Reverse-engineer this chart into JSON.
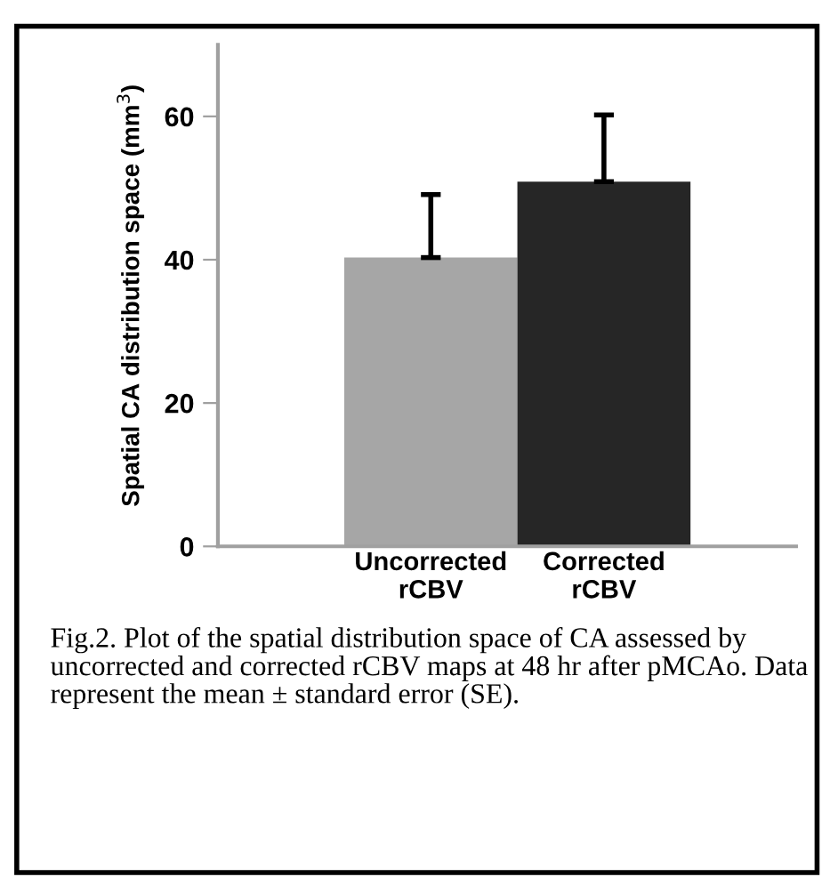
{
  "chart_data": {
    "type": "bar",
    "ylabel": "Spatial CA distribution space (mm$^{3}$)",
    "categories": [
      "Uncorrected\nrCBV",
      "Corrected\nrCBV"
    ],
    "values": [
      40.3,
      50.9
    ],
    "colors": [
      "#a6a6a6",
      "#262626"
    ],
    "errors": [
      [
        40.3,
        49.1
      ],
      [
        50.9,
        60.2
      ]
    ],
    "ylim": [
      0,
      70
    ],
    "yticks": [
      0,
      20,
      40,
      60
    ],
    "grid": false,
    "annotations": [
      "Fig.2. Plot of the spatial distribution space of CA assessed by uncorrected and corrected rCBV maps at 48 hr after pMCAo. Data represent the mean ± standard error (SE)."
    ]
  }
}
